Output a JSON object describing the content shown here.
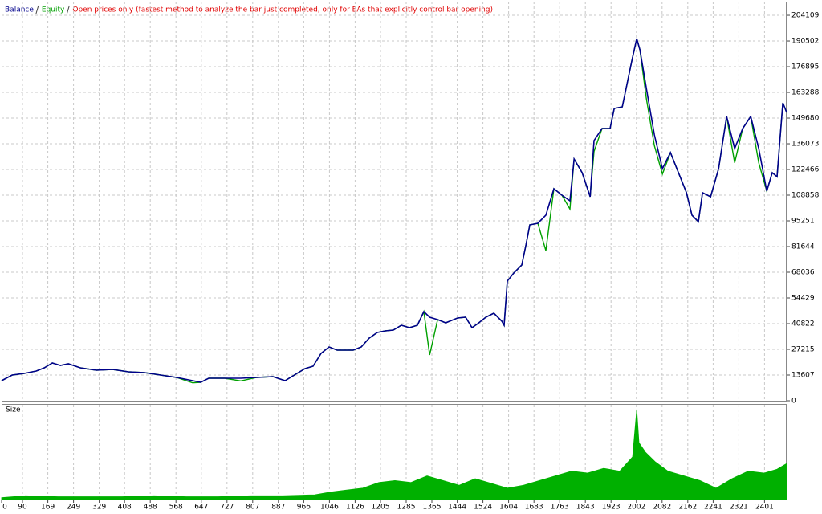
{
  "chart_data": [
    {
      "type": "line",
      "subtitle": "Open prices only (fastest method to analyze the bar just completed, only for EAs that explicitly control bar opening)",
      "xlim": [
        25,
        2470
      ],
      "xticks": [
        0,
        90,
        169,
        249,
        329,
        408,
        488,
        568,
        647,
        727,
        807,
        887,
        966,
        1046,
        1126,
        1205,
        1285,
        1365,
        1444,
        1524,
        1604,
        1683,
        1763,
        1843,
        1923,
        2002,
        2082,
        2162,
        2241,
        2321,
        2401
      ],
      "ylim": [
        0,
        210500
      ],
      "yticks": [
        0,
        13607,
        27215,
        40822,
        54429,
        68036,
        81644,
        95251,
        108858,
        122466,
        136073,
        149680,
        163288,
        176895,
        190502,
        204109
      ],
      "grid": true,
      "x": [
        25,
        58,
        95,
        133,
        158,
        183,
        208,
        233,
        270,
        320,
        370,
        420,
        470,
        520,
        570,
        620,
        645,
        670,
        720,
        770,
        820,
        870,
        908,
        945,
        970,
        995,
        1020,
        1045,
        1070,
        1120,
        1145,
        1170,
        1195,
        1220,
        1245,
        1270,
        1295,
        1320,
        1340,
        1358,
        1383,
        1408,
        1445,
        1470,
        1490,
        1508,
        1533,
        1558,
        1583,
        1590,
        1600,
        1620,
        1645,
        1658,
        1670,
        1695,
        1720,
        1745,
        1770,
        1795,
        1808,
        1833,
        1858,
        1870,
        1895,
        1920,
        1933,
        1958,
        1970,
        1988,
        2003,
        2013,
        2033,
        2058,
        2083,
        2108,
        2133,
        2158,
        2175,
        2195,
        2208,
        2233,
        2258,
        2283,
        2308,
        2333,
        2358,
        2383,
        2408,
        2425,
        2440,
        2458,
        2470
      ],
      "series": [
        {
          "name": "Equity",
          "color": "#00a000",
          "values": [
            10630,
            13606,
            14457,
            15732,
            17433,
            19984,
            18709,
            19559,
            17433,
            16158,
            16583,
            15307,
            14882,
            13606,
            12331,
            9500,
            9780,
            11906,
            11906,
            10500,
            12331,
            12756,
            10630,
            14457,
            17008,
            18284,
            25087,
            28488,
            26788,
            26788,
            28488,
            33166,
            36142,
            36992,
            37418,
            39969,
            38693,
            39969,
            47197,
            24236,
            42945,
            41245,
            43796,
            44221,
            38693,
            40819,
            44221,
            46347,
            42095,
            39969,
            63355,
            67607,
            71859,
            82489,
            93119,
            93969,
            79512,
            112253,
            108851,
            101500,
            127985,
            120757,
            108001,
            132000,
            144143,
            144143,
            154773,
            155623,
            165403,
            180285,
            191765,
            185812,
            160000,
            135000,
            120000,
            131387,
            120757,
            110127,
            98221,
            94820,
            110127,
            108001,
            122883,
            150521,
            126000,
            144143,
            150521,
            126000,
            110977,
            120757,
            118631,
            157749,
            152647
          ]
        },
        {
          "name": "Balance",
          "color": "#00008b",
          "values": [
            10630,
            13606,
            14457,
            15732,
            17433,
            19984,
            18709,
            19559,
            17433,
            16158,
            16583,
            15307,
            14882,
            13606,
            12331,
            10630,
            9780,
            11906,
            11906,
            11906,
            12331,
            12756,
            10630,
            14457,
            17008,
            18284,
            25087,
            28488,
            26788,
            26788,
            28488,
            33166,
            36142,
            36992,
            37418,
            39969,
            38693,
            39969,
            47197,
            44221,
            42945,
            41245,
            43796,
            44221,
            38693,
            40819,
            44221,
            46347,
            42095,
            39969,
            63355,
            67607,
            71859,
            82489,
            93119,
            93969,
            98221,
            112253,
            108851,
            105875,
            127985,
            120757,
            108001,
            137765,
            144143,
            144143,
            154773,
            155623,
            165403,
            180285,
            191765,
            185812,
            165403,
            140741,
            122883,
            131387,
            120757,
            110127,
            98221,
            94820,
            110127,
            108001,
            122883,
            150521,
            133513,
            144143,
            150521,
            133513,
            110977,
            120757,
            118631,
            157749,
            152647
          ]
        }
      ]
    },
    {
      "type": "area",
      "title": "Size",
      "color": "#00b000",
      "xlim": [
        25,
        2470
      ],
      "ylim": [
        0,
        100
      ],
      "x": [
        25,
        100,
        200,
        300,
        400,
        500,
        600,
        700,
        800,
        900,
        1000,
        1050,
        1100,
        1150,
        1200,
        1250,
        1300,
        1350,
        1400,
        1450,
        1500,
        1550,
        1600,
        1650,
        1700,
        1750,
        1800,
        1850,
        1900,
        1950,
        1990,
        2003,
        2010,
        2030,
        2060,
        2100,
        2150,
        2200,
        2250,
        2300,
        2350,
        2400,
        2440,
        2470
      ],
      "values": [
        2,
        4,
        3,
        3,
        3,
        4,
        3,
        3,
        4,
        4,
        5,
        8,
        10,
        12,
        18,
        20,
        18,
        25,
        20,
        15,
        22,
        17,
        12,
        15,
        20,
        25,
        30,
        28,
        33,
        30,
        45,
        95,
        60,
        50,
        40,
        30,
        25,
        20,
        12,
        22,
        30,
        28,
        32,
        38
      ]
    }
  ]
}
